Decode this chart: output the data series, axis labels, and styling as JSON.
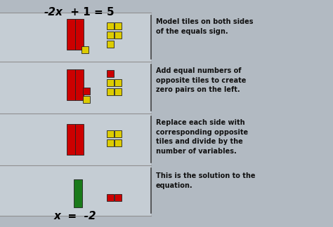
{
  "title_parts": [
    "-2x",
    " + 1 = 5"
  ],
  "bottom_label": "x  =  -2",
  "bg_color": "#b2bac2",
  "panel_color": "#c5cdd4",
  "right_panel_color": "#c8d0d8",
  "divider_color": "#444444",
  "sep_color": "#909090",
  "red_color": "#cc0000",
  "yellow_color": "#ddcc00",
  "green_color": "#1a7a1a",
  "text_color": "#111111",
  "row_texts": [
    "Model tiles on both sides\nof the equals sign.",
    "Add equal numbers of\nopposite tiles to create\nzero pairs on the left.",
    "Replace each side with\ncorresponding opposite\ntiles and divide by the\nnumber of variables.",
    "This is the solution to the\nequation."
  ],
  "figsize": [
    4.74,
    3.24
  ],
  "dpi": 100
}
